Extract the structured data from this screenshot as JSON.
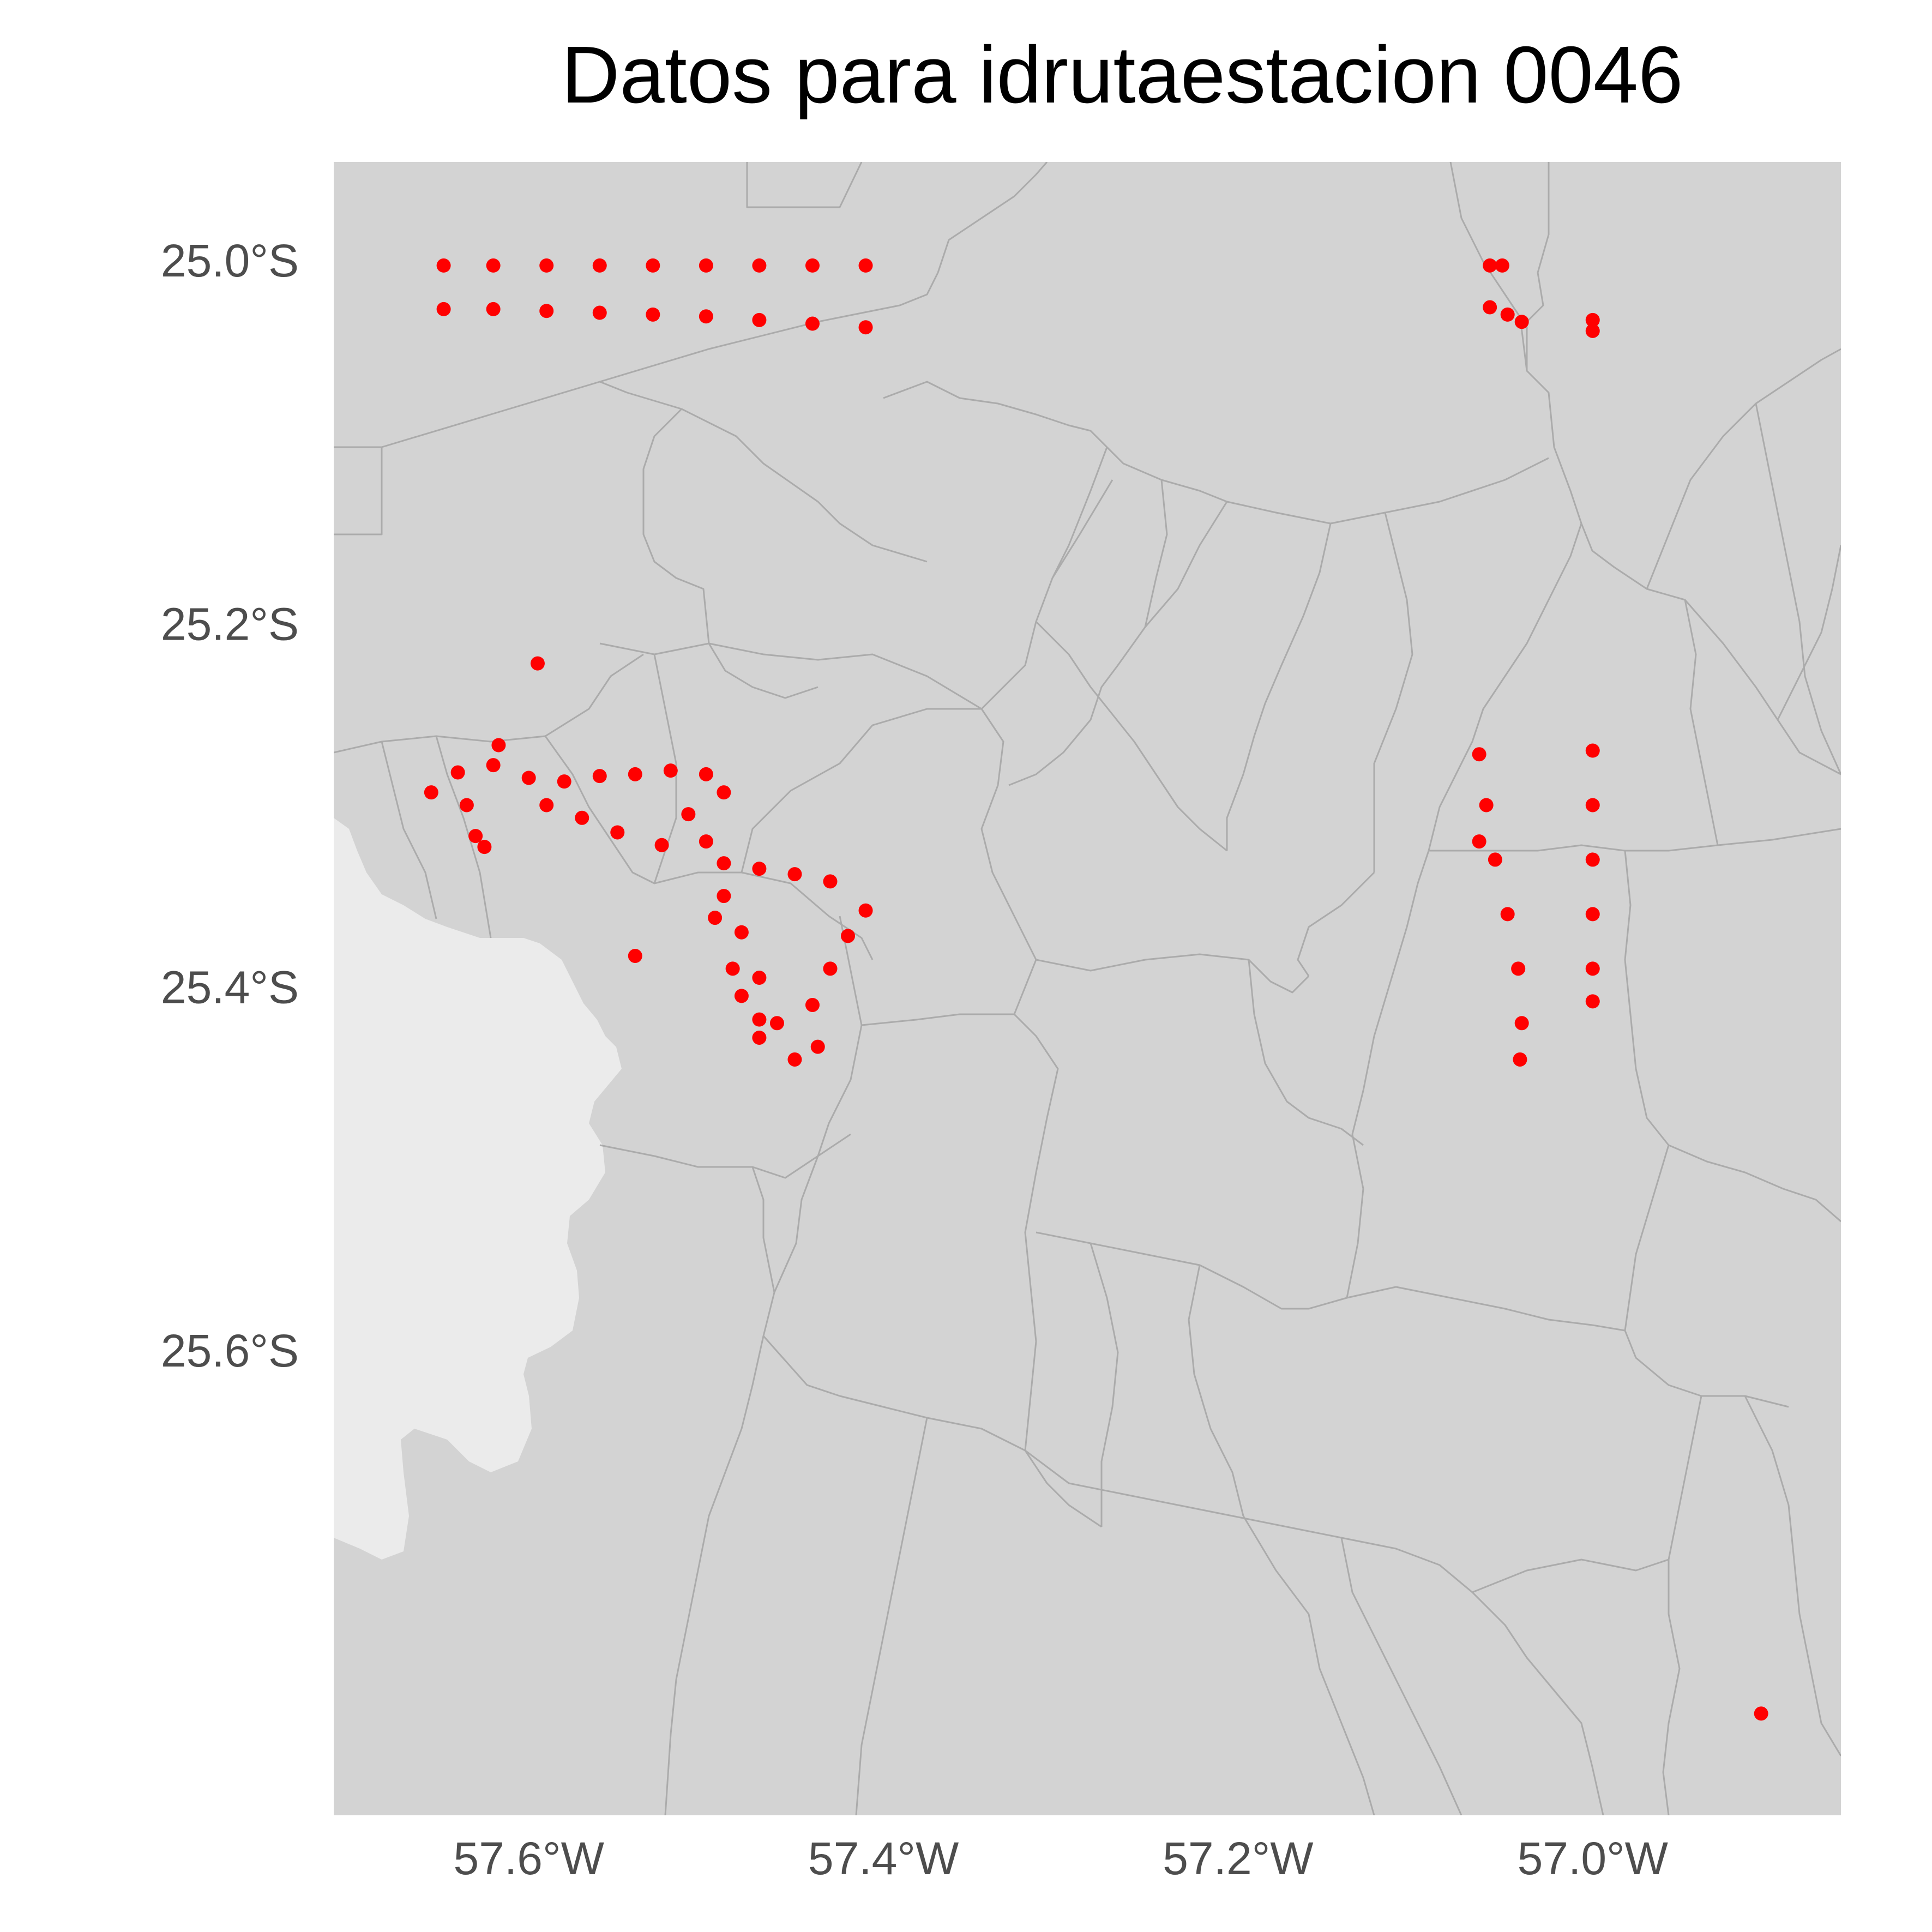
{
  "chart_data": {
    "type": "scatter",
    "title": "Datos para idrutaestacion 0046",
    "xlabel": "",
    "ylabel": "",
    "xlim": [
      -57.71,
      -56.86
    ],
    "ylim": [
      -25.856,
      -24.946
    ],
    "x_ticks": [
      {
        "value": -57.6,
        "label": "57.6°W"
      },
      {
        "value": -57.4,
        "label": "57.4°W"
      },
      {
        "value": -57.2,
        "label": "57.2°W"
      },
      {
        "value": -57.0,
        "label": "57.0°W"
      }
    ],
    "y_ticks": [
      {
        "value": -25.0,
        "label": "25.0°S"
      },
      {
        "value": -25.2,
        "label": "25.2°S"
      },
      {
        "value": -25.4,
        "label": "25.4°S"
      },
      {
        "value": -25.6,
        "label": "25.6°S"
      }
    ],
    "grid": true,
    "legend": "none",
    "colors": {
      "points": "#ff0000",
      "land": "#d3d3d3",
      "boundaries": "#ababab",
      "grid": "#ebebeb",
      "background": "#ffffff"
    },
    "series": [
      {
        "points": [
          {
            "x": -57.648,
            "y": -25.003
          },
          {
            "x": -57.62,
            "y": -25.003
          },
          {
            "x": -57.59,
            "y": -25.003
          },
          {
            "x": -57.56,
            "y": -25.003
          },
          {
            "x": -57.53,
            "y": -25.003
          },
          {
            "x": -57.5,
            "y": -25.003
          },
          {
            "x": -57.47,
            "y": -25.003
          },
          {
            "x": -57.44,
            "y": -25.003
          },
          {
            "x": -57.41,
            "y": -25.003
          },
          {
            "x": -57.648,
            "y": -25.027
          },
          {
            "x": -57.62,
            "y": -25.027
          },
          {
            "x": -57.59,
            "y": -25.028
          },
          {
            "x": -57.56,
            "y": -25.029
          },
          {
            "x": -57.53,
            "y": -25.03
          },
          {
            "x": -57.5,
            "y": -25.031
          },
          {
            "x": -57.47,
            "y": -25.033
          },
          {
            "x": -57.44,
            "y": -25.035
          },
          {
            "x": -57.41,
            "y": -25.037
          },
          {
            "x": -57.058,
            "y": -25.003
          },
          {
            "x": -57.051,
            "y": -25.003
          },
          {
            "x": -57.058,
            "y": -25.026
          },
          {
            "x": -57.048,
            "y": -25.03
          },
          {
            "x": -57.04,
            "y": -25.034
          },
          {
            "x": -57.0,
            "y": -25.033
          },
          {
            "x": -57.0,
            "y": -25.039
          },
          {
            "x": -57.595,
            "y": -25.222
          },
          {
            "x": -57.617,
            "y": -25.267
          },
          {
            "x": -57.655,
            "y": -25.293
          },
          {
            "x": -57.64,
            "y": -25.282
          },
          {
            "x": -57.62,
            "y": -25.278
          },
          {
            "x": -57.6,
            "y": -25.285
          },
          {
            "x": -57.58,
            "y": -25.287
          },
          {
            "x": -57.56,
            "y": -25.284
          },
          {
            "x": -57.54,
            "y": -25.283
          },
          {
            "x": -57.52,
            "y": -25.281
          },
          {
            "x": -57.5,
            "y": -25.283
          },
          {
            "x": -57.49,
            "y": -25.293
          },
          {
            "x": -57.635,
            "y": -25.3
          },
          {
            "x": -57.63,
            "y": -25.317
          },
          {
            "x": -57.625,
            "y": -25.323
          },
          {
            "x": -57.59,
            "y": -25.3
          },
          {
            "x": -57.57,
            "y": -25.307
          },
          {
            "x": -57.55,
            "y": -25.315
          },
          {
            "x": -57.525,
            "y": -25.322
          },
          {
            "x": -57.51,
            "y": -25.305
          },
          {
            "x": -57.5,
            "y": -25.32
          },
          {
            "x": -57.49,
            "y": -25.332
          },
          {
            "x": -57.47,
            "y": -25.335
          },
          {
            "x": -57.45,
            "y": -25.338
          },
          {
            "x": -57.43,
            "y": -25.342
          },
          {
            "x": -57.41,
            "y": -25.358
          },
          {
            "x": -57.42,
            "y": -25.372
          },
          {
            "x": -57.43,
            "y": -25.39
          },
          {
            "x": -57.44,
            "y": -25.41
          },
          {
            "x": -57.45,
            "y": -25.44
          },
          {
            "x": -57.46,
            "y": -25.42
          },
          {
            "x": -57.47,
            "y": -25.395
          },
          {
            "x": -57.48,
            "y": -25.37
          },
          {
            "x": -57.49,
            "y": -25.35
          },
          {
            "x": -57.495,
            "y": -25.362
          },
          {
            "x": -57.485,
            "y": -25.39
          },
          {
            "x": -57.48,
            "y": -25.405
          },
          {
            "x": -57.47,
            "y": -25.418
          },
          {
            "x": -57.47,
            "y": -25.428
          },
          {
            "x": -57.437,
            "y": -25.433
          },
          {
            "x": -57.54,
            "y": -25.383
          },
          {
            "x": -57.064,
            "y": -25.272
          },
          {
            "x": -57.06,
            "y": -25.3
          },
          {
            "x": -57.055,
            "y": -25.33
          },
          {
            "x": -57.048,
            "y": -25.36
          },
          {
            "x": -57.042,
            "y": -25.39
          },
          {
            "x": -57.04,
            "y": -25.42
          },
          {
            "x": -57.041,
            "y": -25.44
          },
          {
            "x": -57.064,
            "y": -25.32
          },
          {
            "x": -57.0,
            "y": -25.27
          },
          {
            "x": -57.0,
            "y": -25.3
          },
          {
            "x": -57.0,
            "y": -25.33
          },
          {
            "x": -57.0,
            "y": -25.36
          },
          {
            "x": -57.0,
            "y": -25.39
          },
          {
            "x": -57.0,
            "y": -25.408
          },
          {
            "x": -56.905,
            "y": -25.8
          }
        ]
      }
    ]
  }
}
